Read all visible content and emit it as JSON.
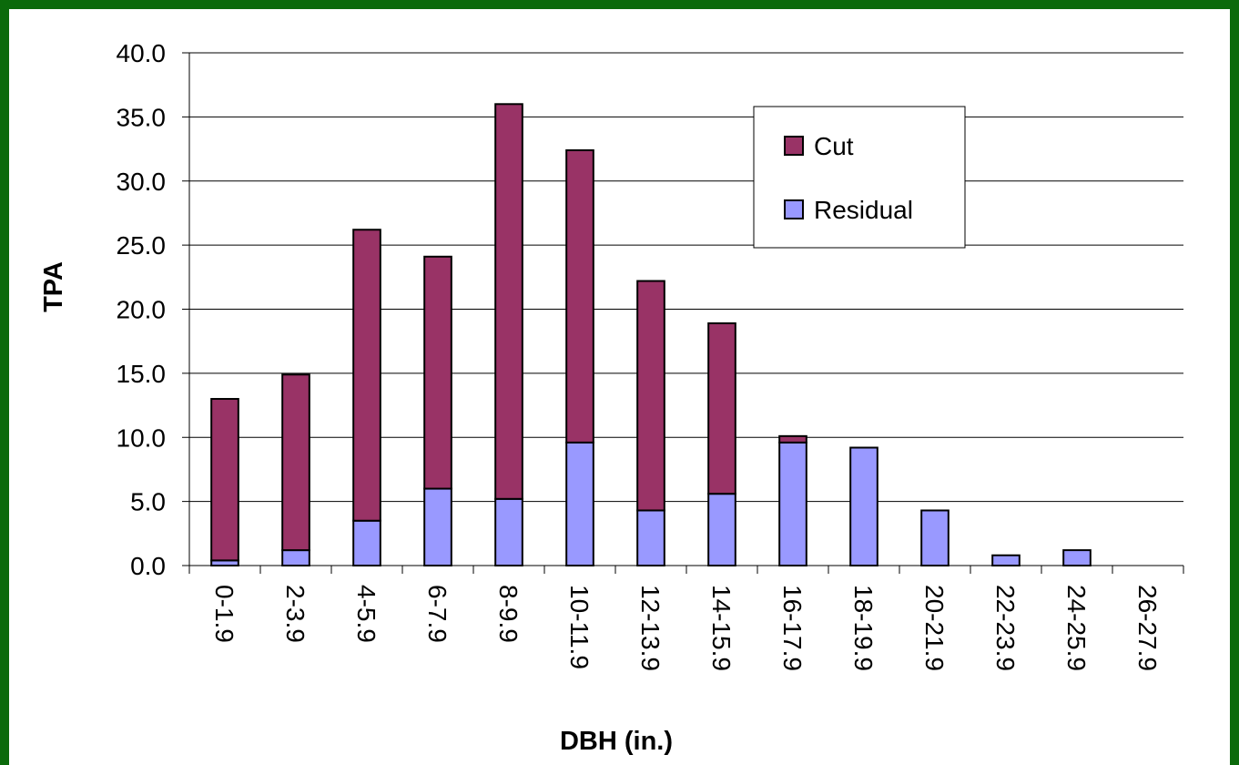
{
  "chart_data": {
    "type": "bar",
    "stacked": true,
    "title": "",
    "xlabel": "DBH (in.)",
    "ylabel": "TPA",
    "ylim": [
      0,
      40
    ],
    "ytick_step": 5,
    "ytick_format": "0.0",
    "grid": true,
    "legend_position": "top-right",
    "categories": [
      "0-1.9",
      "2-3.9",
      "4-5.9",
      "6-7.9",
      "8-9.9",
      "10-11.9",
      "12-13.9",
      "14-15.9",
      "16-17.9",
      "18-19.9",
      "20-21.9",
      "22-23.9",
      "24-25.9",
      "26-27.9"
    ],
    "series": [
      {
        "name": "Residual",
        "color": "#9999ff",
        "values": [
          0.4,
          1.2,
          3.5,
          6.0,
          5.2,
          9.6,
          4.3,
          5.6,
          9.6,
          9.2,
          4.3,
          0.8,
          1.2,
          0
        ]
      },
      {
        "name": "Cut",
        "color": "#993366",
        "values": [
          12.6,
          13.7,
          22.7,
          18.1,
          30.8,
          22.8,
          17.9,
          13.3,
          0.5,
          0,
          0,
          0,
          0,
          0
        ]
      }
    ],
    "legend_order": [
      "Cut",
      "Residual"
    ]
  }
}
